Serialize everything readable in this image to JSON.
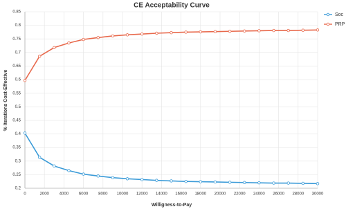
{
  "chart_data": {
    "type": "line",
    "title": "CE Acceptability Curve",
    "x_label": "Willigness-to-Pay",
    "y_label": "% Iterations Cost-Effective",
    "x": [
      0,
      1500,
      3000,
      4500,
      6000,
      7500,
      9000,
      10500,
      12000,
      13500,
      15000,
      16500,
      18000,
      19500,
      21000,
      22500,
      24000,
      25500,
      27000,
      28500,
      30000
    ],
    "series": [
      {
        "name": "Soc",
        "color": "#3b9bd8",
        "values": [
          0.403,
          0.314,
          0.282,
          0.265,
          0.252,
          0.245,
          0.239,
          0.235,
          0.232,
          0.229,
          0.227,
          0.225,
          0.224,
          0.223,
          0.222,
          0.221,
          0.22,
          0.219,
          0.219,
          0.218,
          0.217
        ]
      },
      {
        "name": "PRP",
        "color": "#e8694c",
        "values": [
          0.597,
          0.686,
          0.718,
          0.735,
          0.748,
          0.755,
          0.761,
          0.765,
          0.768,
          0.771,
          0.773,
          0.775,
          0.776,
          0.777,
          0.778,
          0.779,
          0.78,
          0.781,
          0.781,
          0.782,
          0.783
        ]
      }
    ],
    "xlim": [
      0,
      30000
    ],
    "xticks": [
      0,
      2000,
      4000,
      6000,
      8000,
      10000,
      12000,
      14000,
      16000,
      18000,
      20000,
      22000,
      24000,
      26000,
      28000,
      30000
    ],
    "ylim": [
      0.2,
      0.85
    ],
    "yticks": [
      0.2,
      0.25,
      0.3,
      0.35,
      0.4,
      0.45,
      0.5,
      0.55,
      0.6,
      0.65,
      0.7,
      0.75,
      0.8,
      0.85
    ],
    "grid": true,
    "legend": "top-right"
  }
}
